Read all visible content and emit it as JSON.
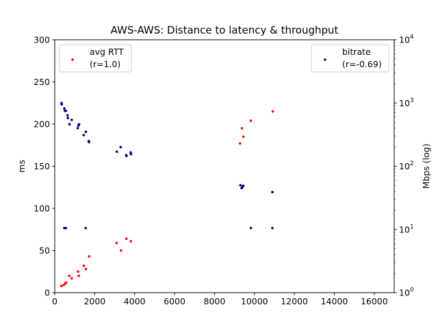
{
  "chart_data": {
    "type": "scatter",
    "title": "AWS-AWS: Distance to latency & throughput",
    "xlabel": "",
    "ylabel": "ms",
    "y2label": "Mbps (log)",
    "xlim": [
      0,
      17000
    ],
    "ylim": [
      0,
      300
    ],
    "y2lim": [
      1,
      10000
    ],
    "y2scale": "log",
    "grid": false,
    "x_ticks": [
      "0",
      "2000",
      "4000",
      "6000",
      "8000",
      "10000",
      "12000",
      "14000",
      "16000"
    ],
    "y_ticks": [
      "0",
      "50",
      "100",
      "150",
      "200",
      "250",
      "300"
    ],
    "y2_ticks": [
      {
        "base": "10",
        "exp": "0"
      },
      {
        "base": "10",
        "exp": "1"
      },
      {
        "base": "10",
        "exp": "2"
      },
      {
        "base": "10",
        "exp": "3"
      },
      {
        "base": "10",
        "exp": "4"
      }
    ],
    "series": [
      {
        "name": "avg RTT",
        "note": "(r=1.0)",
        "axis": "left",
        "color": "#ff0000",
        "legend": "top-left",
        "points": [
          [
            330,
            8
          ],
          [
            450,
            9
          ],
          [
            530,
            11
          ],
          [
            570,
            12
          ],
          [
            730,
            20
          ],
          [
            850,
            17
          ],
          [
            1170,
            25
          ],
          [
            1200,
            20
          ],
          [
            1460,
            32
          ],
          [
            1560,
            28
          ],
          [
            1720,
            43
          ],
          [
            3100,
            59
          ],
          [
            3320,
            50
          ],
          [
            3590,
            64
          ],
          [
            3810,
            61
          ],
          [
            9280,
            177
          ],
          [
            9380,
            195
          ],
          [
            9450,
            185
          ],
          [
            9820,
            204
          ],
          [
            10920,
            215
          ]
        ]
      },
      {
        "name": "bitrate",
        "note": "(r=-0.69)",
        "axis": "right",
        "color": "#000080",
        "legend": "top-right",
        "points": [
          [
            340,
            1000
          ],
          [
            350,
            950
          ],
          [
            480,
            820
          ],
          [
            510,
            750
          ],
          [
            560,
            750
          ],
          [
            640,
            640
          ],
          [
            660,
            580
          ],
          [
            740,
            460
          ],
          [
            850,
            540
          ],
          [
            1150,
            400
          ],
          [
            1190,
            440
          ],
          [
            1220,
            460
          ],
          [
            1450,
            310
          ],
          [
            1560,
            350
          ],
          [
            1700,
            250
          ],
          [
            1720,
            240
          ],
          [
            3110,
            170
          ],
          [
            3300,
            200
          ],
          [
            3580,
            150
          ],
          [
            3590,
            145
          ],
          [
            3800,
            165
          ],
          [
            3820,
            155
          ],
          [
            9300,
            50
          ],
          [
            9360,
            45
          ],
          [
            9400,
            47
          ],
          [
            9440,
            49
          ],
          [
            10900,
            39
          ],
          [
            480,
            10.5
          ],
          [
            560,
            10.5
          ],
          [
            1550,
            10.5
          ],
          [
            9820,
            10.5
          ],
          [
            10900,
            10.5
          ]
        ]
      }
    ]
  }
}
